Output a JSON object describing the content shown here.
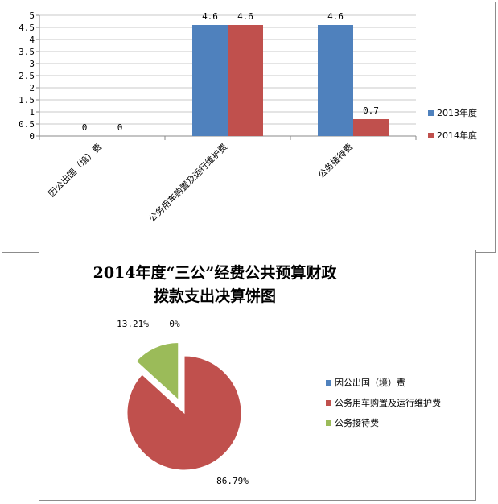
{
  "chart_data": [
    {
      "type": "bar",
      "categories": [
        "因公出国（境）费",
        "公务用车购置及运行维护费",
        "公务接待费"
      ],
      "series": [
        {
          "name": "2013年度",
          "values": [
            0,
            4.6,
            4.6
          ],
          "color": "#4f81bd"
        },
        {
          "name": "2014年度",
          "values": [
            0,
            4.6,
            0.7
          ],
          "color": "#c0504d"
        }
      ],
      "data_labels": [
        [
          "0",
          "4.6",
          "4.6"
        ],
        [
          "0",
          "4.6",
          "0.7"
        ]
      ],
      "yticks": [
        "0",
        "0.5",
        "1",
        "1.5",
        "2",
        "2.5",
        "3",
        "3.5",
        "4",
        "4.5",
        "5"
      ],
      "ylim": [
        0,
        5
      ],
      "grid": true,
      "legend_position": "right"
    },
    {
      "type": "pie",
      "title_lines": [
        "2014年度“三公”经费公共预算财政",
        "拨款支出决算饼图"
      ],
      "categories": [
        "因公出国（境）费",
        "公务用车购置及运行维护费",
        "公务接待费"
      ],
      "values": [
        0,
        86.79,
        13.21
      ],
      "labels": [
        "0%",
        "86.79%",
        "13.21%"
      ],
      "colors": [
        "#4f81bd",
        "#c0504d",
        "#9bbb59"
      ],
      "exploded": "公务接待费",
      "legend_position": "right"
    }
  ]
}
